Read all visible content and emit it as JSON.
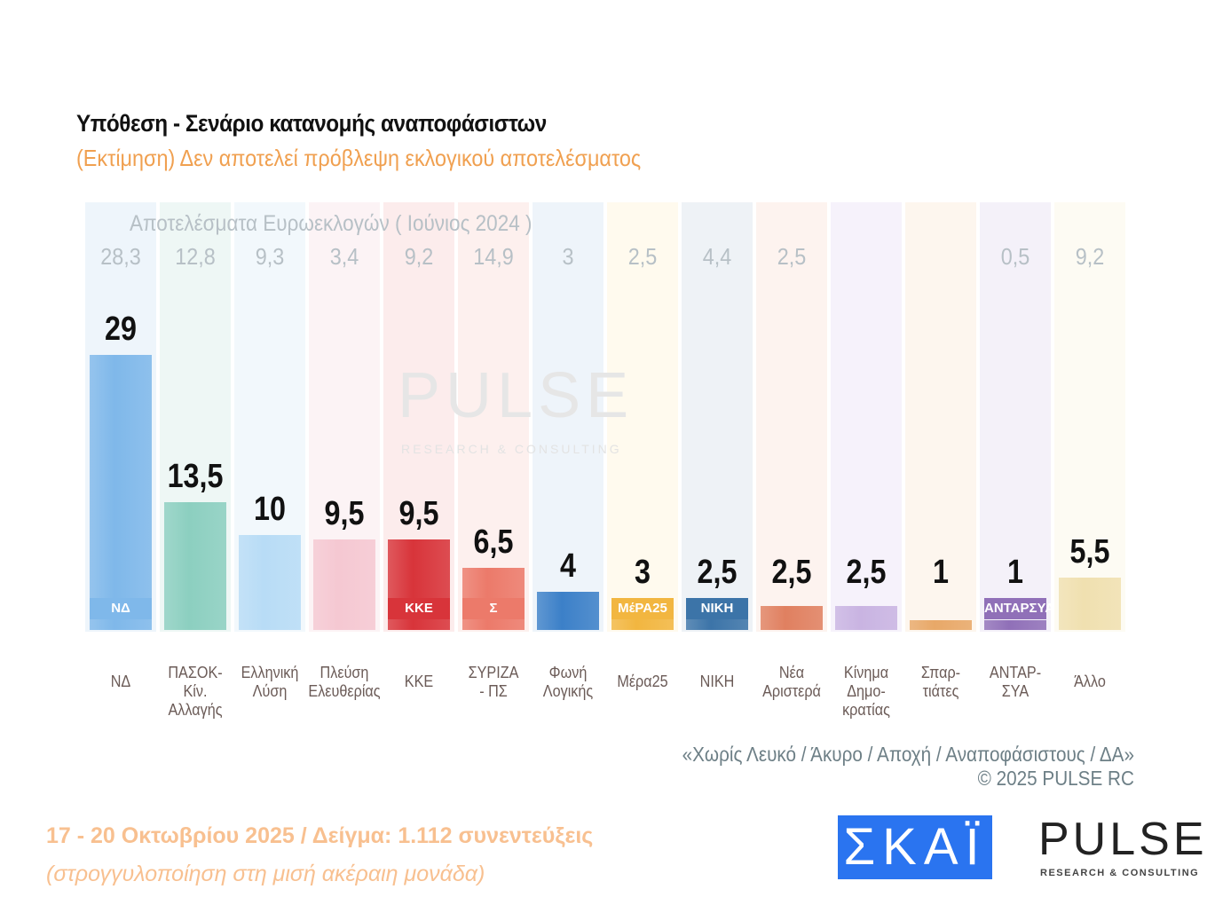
{
  "title": "Υπόθεση - Σενάριο κατανομής αναποφάσιστων",
  "subtitle": "(Εκτίμηση)   Δεν αποτελεί πρόβλεψη εκλογικού αποτελέσματος",
  "euro_title": "Αποτελέσματα Ευρωεκλογών  ( Ιούνιος 2024 )",
  "note": "«Χωρίς Λευκό / Άκυρο / Αποχή / Αναποφάσιστους / ΔΑ»",
  "copyright": "©  2025  PULSE RC",
  "date_sample": "17 - 20 Οκτωβρίου 2025  /  Δείγμα:  1.112 συνεντεύξεις",
  "rounding": "(στρογγυλοποίηση στη μισή ακέραιη μονάδα)",
  "logos": {
    "skai": "ΣΚΑΪ",
    "pulse": "PULSE",
    "pulse_sub": "RESEARCH & CONSULTING",
    "watermark": "PULSE",
    "watermark_sub": "RESEARCH & CONSULTING"
  },
  "chart_data": {
    "type": "bar",
    "title": "Υπόθεση - Σενάριο κατανομής αναποφάσιστων",
    "categories": [
      [
        "ΝΔ"
      ],
      [
        "ΠΑΣΟΚ-Κίν.",
        "Αλλαγής"
      ],
      [
        "Ελληνική",
        "Λύση"
      ],
      [
        "Πλεύση",
        "Ελευθερίας"
      ],
      [
        "ΚΚΕ"
      ],
      [
        "ΣΥΡΙΖΑ",
        "- ΠΣ"
      ],
      [
        "Φωνή",
        "Λογικής"
      ],
      [
        "Μέρα25"
      ],
      [
        "ΝΙΚΗ"
      ],
      [
        "Νέα",
        "Αριστερά"
      ],
      [
        "Κίνημα",
        "Δημο-",
        "κρατίας"
      ],
      [
        "Σπαρ-",
        "τιάτες"
      ],
      [
        "ΑΝΤΑΡ-",
        "ΣΥΑ"
      ],
      [
        "Άλλο"
      ]
    ],
    "values": [
      29,
      13.5,
      10,
      9.5,
      9.5,
      6.5,
      4,
      3,
      2.5,
      2.5,
      2.5,
      1,
      1,
      5.5
    ],
    "value_labels": [
      "29",
      "13,5",
      "10",
      "9,5",
      "9,5",
      "6,5",
      "4",
      "3",
      "2,5",
      "2,5",
      "2,5",
      "1",
      "1",
      "5,5"
    ],
    "euro_2024_labels": [
      "28,3",
      "12,8",
      "9,3",
      "3,4",
      "9,2",
      "14,9",
      "3",
      "2,5",
      "4,4",
      "2,5",
      "",
      "",
      "0,5",
      "9,2"
    ],
    "logo_text": [
      "ΝΔ",
      "",
      "",
      "",
      "ΚΚΕ",
      "Σ",
      "",
      "ΜέΡΑ25",
      "ΝΙΚΗ",
      "",
      "",
      "",
      "ΑΝΤΑΡΣΥΑ",
      ""
    ],
    "colors": [
      "#7fb8ea",
      "#8ccfc0",
      "#b8dcf6",
      "#f5c8d2",
      "#d8343a",
      "#ec7a6a",
      "#3c80c8",
      "#f2b640",
      "#3c74a8",
      "#e08060",
      "#c9b4e2",
      "#e8a868",
      "#9070b8",
      "#f0e0b0"
    ],
    "strip_colors": [
      "#eef5fb",
      "#eef7f5",
      "#f2f8fc",
      "#fcf3f5",
      "#fcecec",
      "#fdf0ee",
      "#eef4fa",
      "#fffaee",
      "#eef2f6",
      "#fdf3ef",
      "#f6f2fb",
      "#fdf6ee",
      "#f4f1f9",
      "#fdfbf3"
    ],
    "ylim": [
      0,
      30
    ],
    "grid": false
  }
}
